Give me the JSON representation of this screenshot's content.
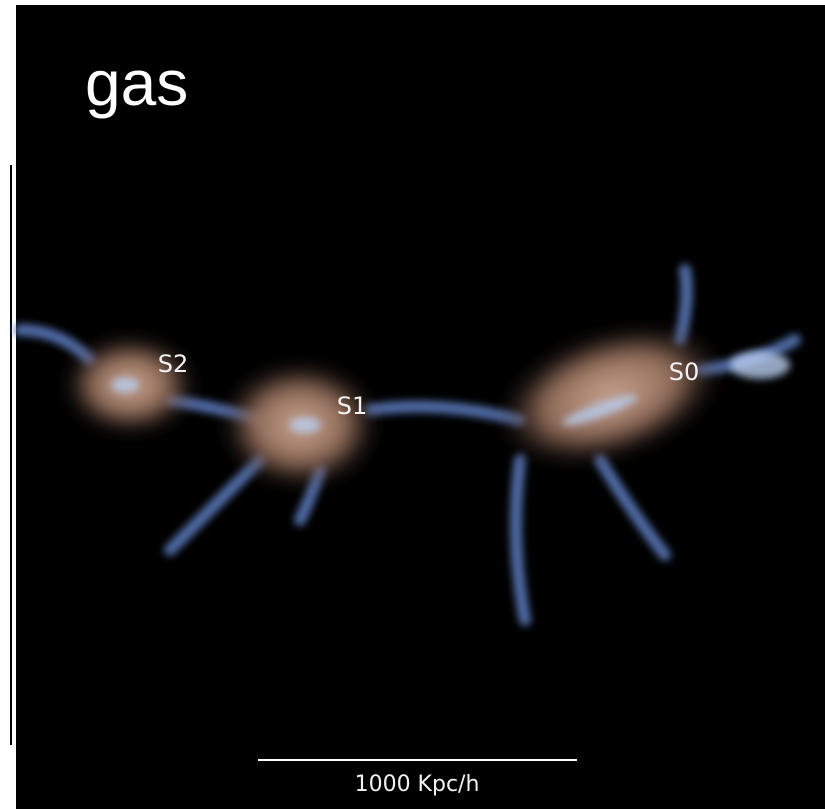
{
  "title": "gas",
  "labels": [
    "S2",
    "S1",
    "S0"
  ],
  "scale_bar": {
    "label": "1000 Kpc/h"
  }
}
